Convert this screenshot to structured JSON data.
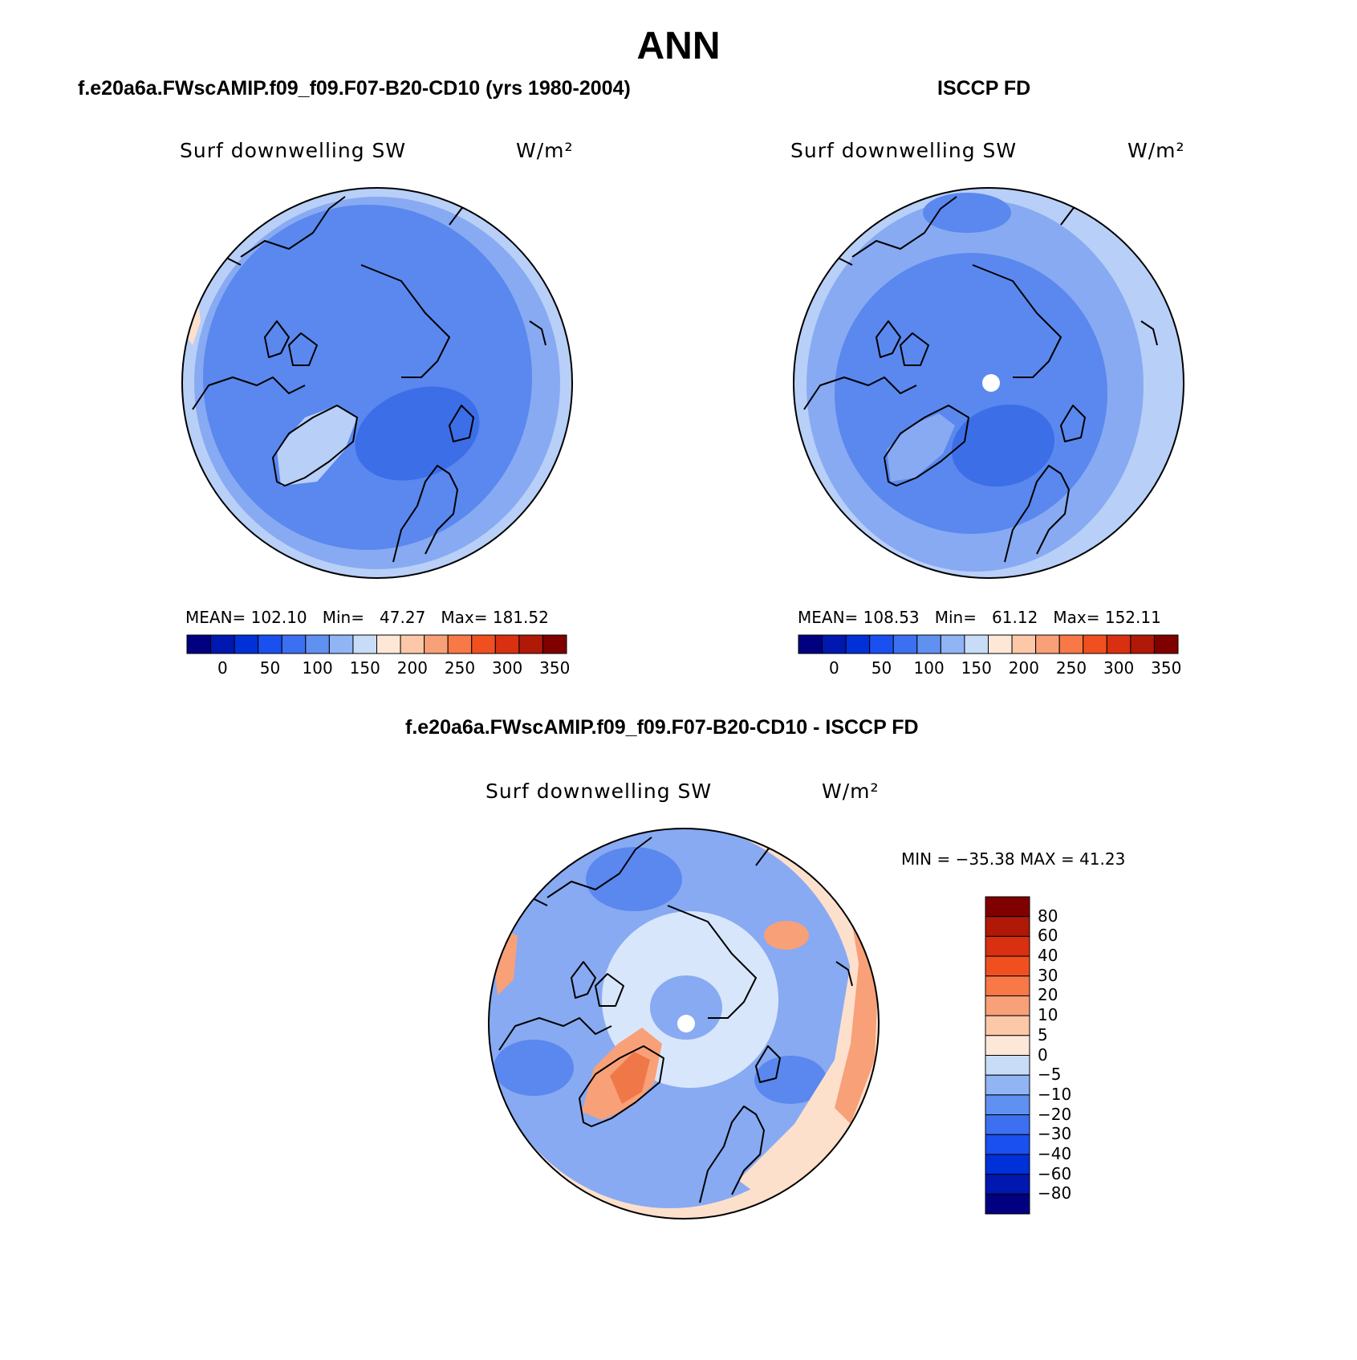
{
  "main_title": "ANN",
  "panels": [
    {
      "title": "f.e20a6a.FWscAMIP.f09_f09.F07-B20-CD10 (yrs 1980-2004)",
      "variable": "Surf downwelling SW",
      "units": "W/m²",
      "stats": {
        "mean_label": "MEAN=",
        "mean": "102.10",
        "min_label": "Min=",
        "min": "47.27",
        "max_label": "Max=",
        "max": "181.52"
      }
    },
    {
      "title": "ISCCP FD",
      "variable": "Surf downwelling SW",
      "units": "W/m²",
      "stats": {
        "mean_label": "MEAN=",
        "mean": "108.53",
        "min_label": "Min=",
        "min": "61.12",
        "max_label": "Max=",
        "max": "152.11"
      }
    },
    {
      "title": "f.e20a6a.FWscAMIP.f09_f09.F07-B20-CD10 - ISCCP FD",
      "variable": "Surf downwelling SW",
      "units": "W/m²",
      "stats_text": "MIN = −35.38 MAX =  41.23"
    }
  ],
  "colorbar_abs": {
    "ticks": [
      "0",
      "50",
      "100",
      "150",
      "200",
      "250",
      "300",
      "350"
    ],
    "colors": [
      "#000080",
      "#0018b0",
      "#0030d8",
      "#1a50f0",
      "#3c70f0",
      "#6090f0",
      "#90b4f4",
      "#c8dcf8",
      "#fde8d8",
      "#fcc8a8",
      "#f8a078",
      "#f87848",
      "#f05020",
      "#d83010",
      "#b01808",
      "#800000"
    ]
  },
  "colorbar_diff": {
    "ticks": [
      "80",
      "60",
      "40",
      "30",
      "20",
      "10",
      "5",
      "0",
      "−5",
      "−10",
      "−20",
      "−30",
      "−40",
      "−60",
      "−80"
    ],
    "colors": [
      "#800000",
      "#b01808",
      "#d83010",
      "#f05020",
      "#f87848",
      "#f8a078",
      "#fcc8a8",
      "#fde8d8",
      "#c8dcf8",
      "#90b4f4",
      "#6090f0",
      "#3c70f0",
      "#1a50f0",
      "#0030d8",
      "#0018b0",
      "#000080"
    ]
  },
  "map_colors": {
    "deep": "#3c6ee8",
    "mid": "#5a88ee",
    "light": "#88aaf2",
    "pale": "#b8cff8",
    "faint": "#d8e6fb",
    "warm_pale": "#fde0cc",
    "warm": "#f8a078",
    "warm_strong": "#f07848",
    "land_outline": "#000000"
  }
}
